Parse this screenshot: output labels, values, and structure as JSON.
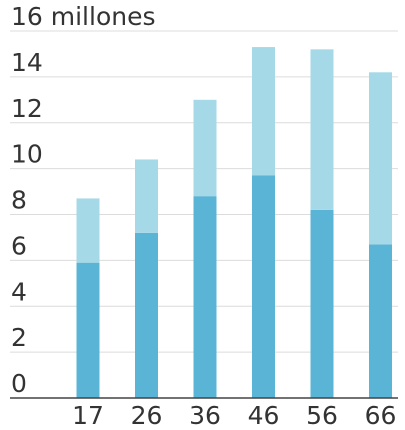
{
  "chart_data": {
    "type": "bar",
    "stacked": true,
    "categories": [
      "17",
      "26",
      "36",
      "46",
      "56",
      "66"
    ],
    "series": [
      {
        "values": [
          5.9,
          7.2,
          8.8,
          9.7,
          8.2,
          6.7
        ]
      },
      {
        "values": [
          2.8,
          3.2,
          4.2,
          5.6,
          7.0,
          7.5
        ]
      }
    ],
    "colors": [
      "#5ab4d6",
      "#a5d9e8"
    ],
    "y_ticks": [
      "16 millones",
      "14",
      "12",
      "10",
      "8",
      "6",
      "4",
      "2",
      "0"
    ],
    "ylim": [
      0,
      16
    ],
    "grid": true,
    "legend": "none"
  }
}
